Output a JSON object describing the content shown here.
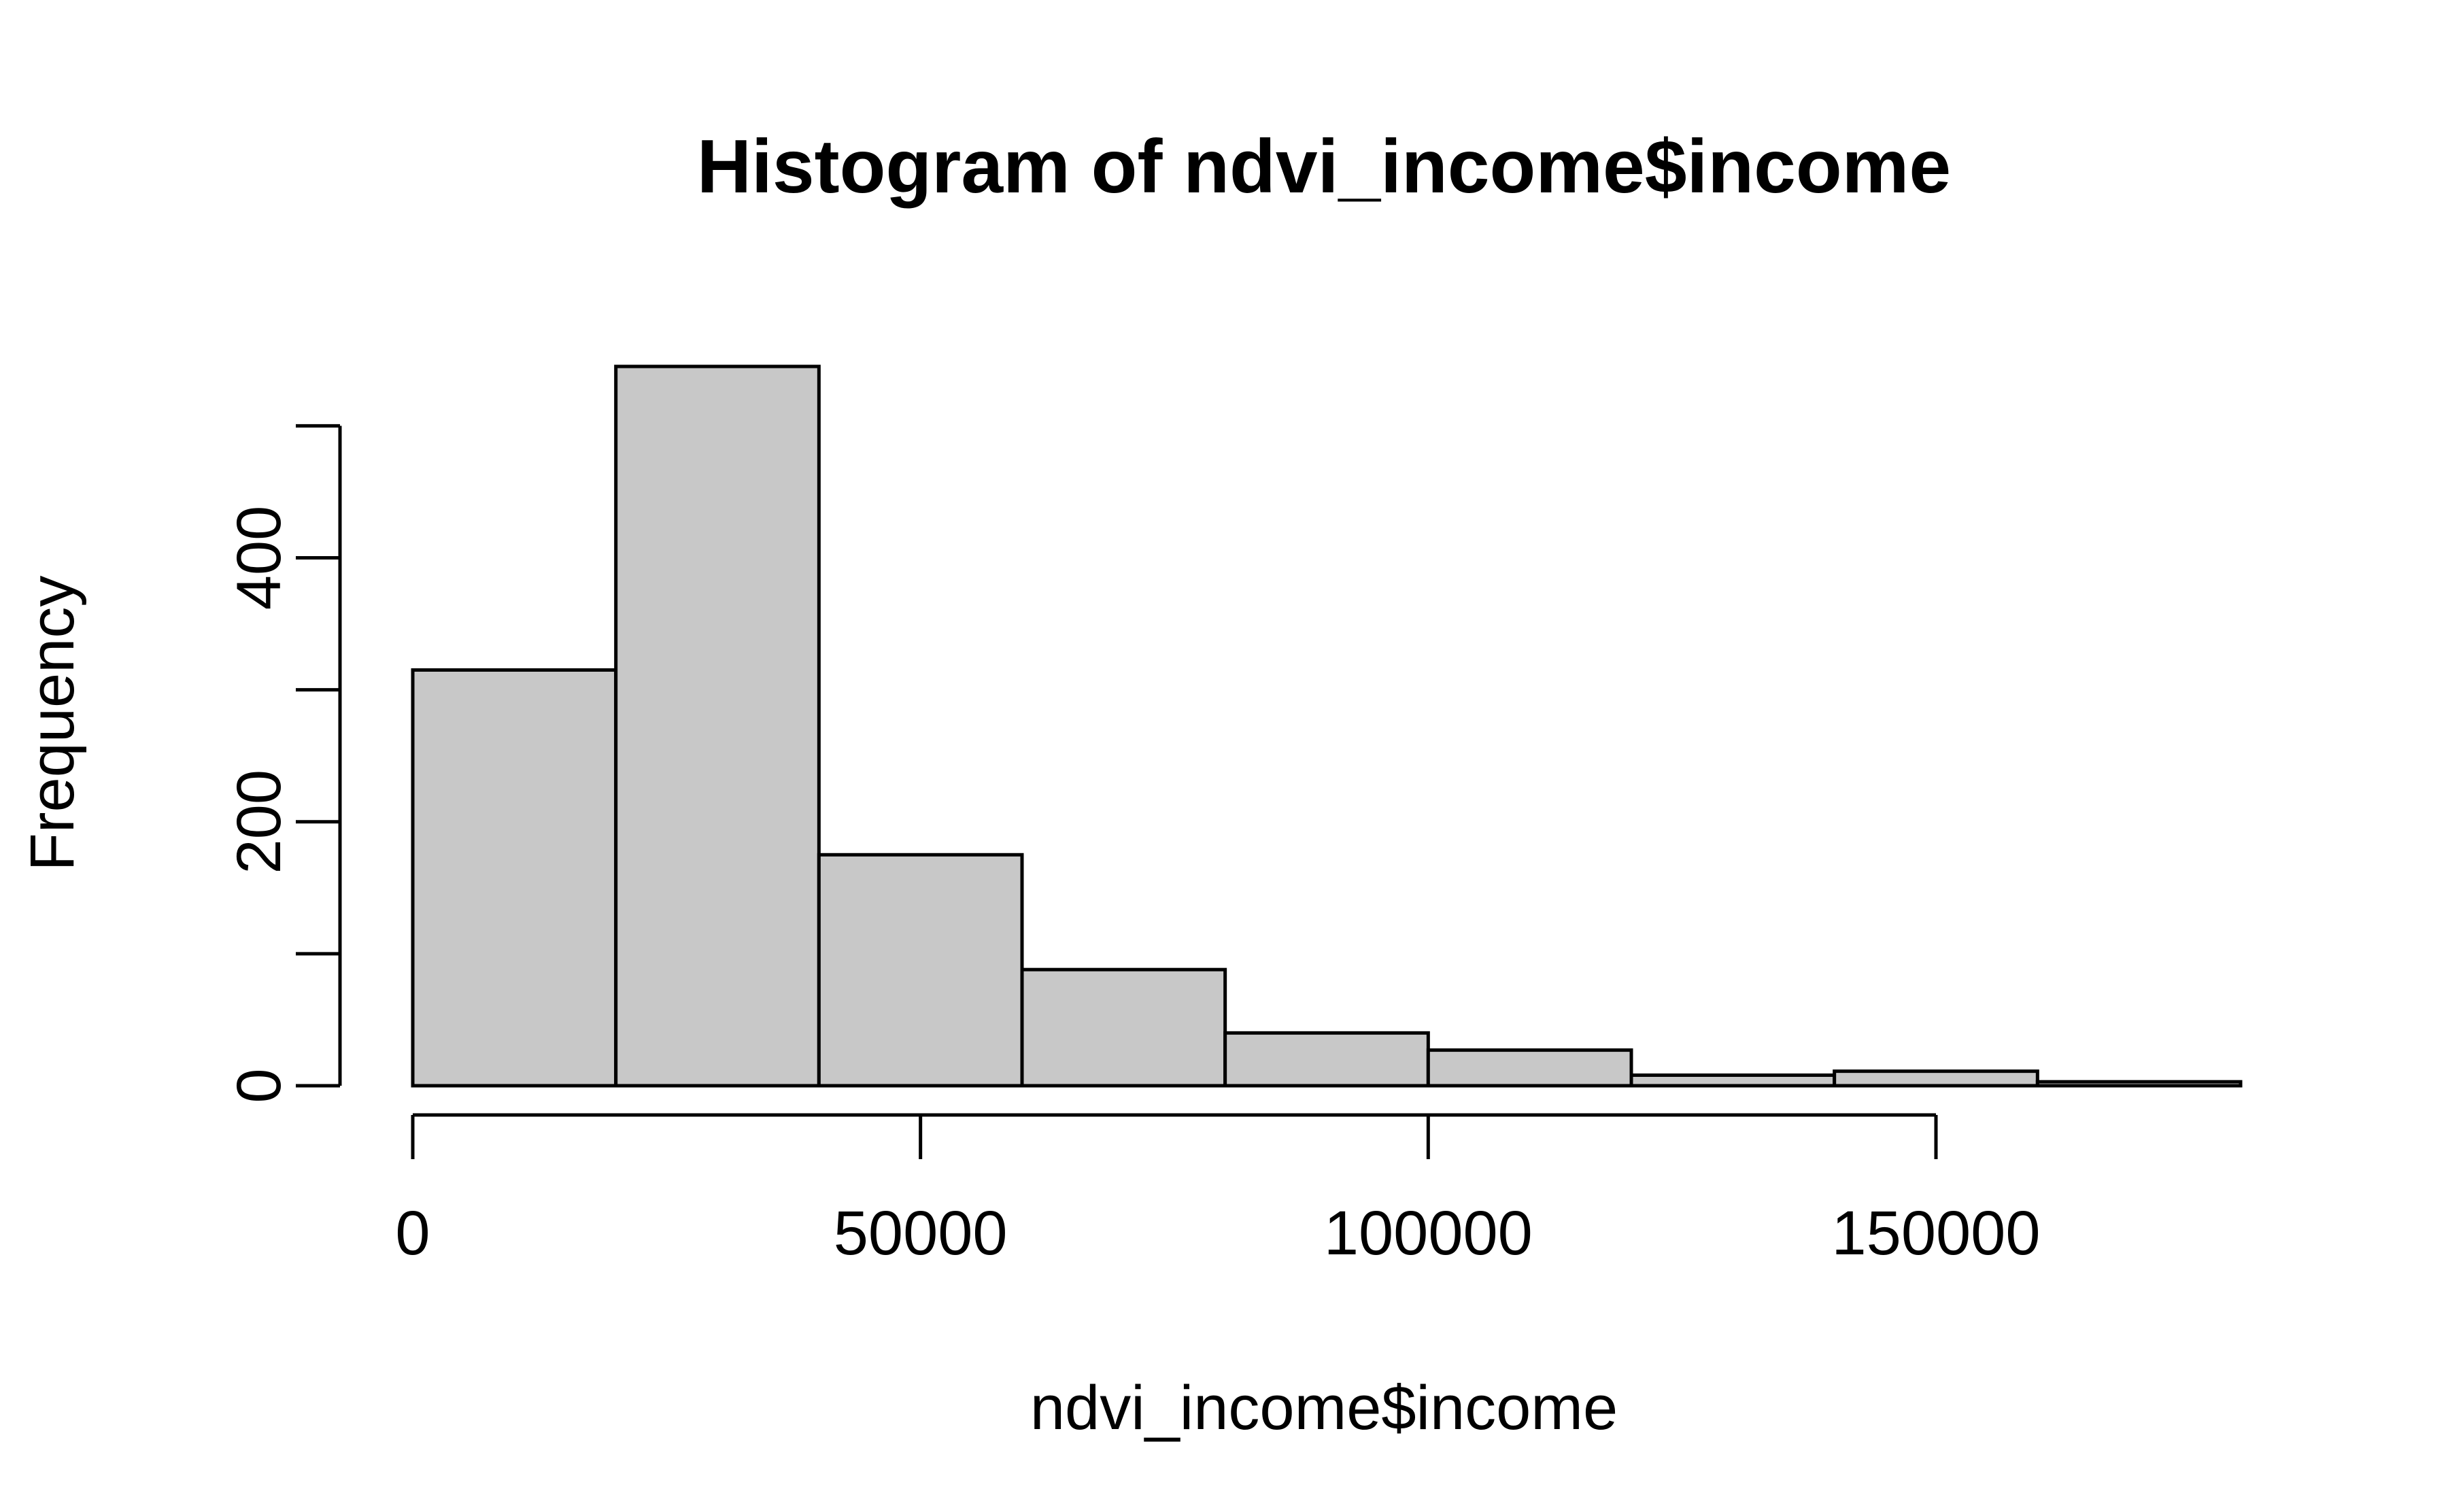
{
  "chart_data": {
    "type": "bar",
    "title": "Histogram of ndvi_income$income",
    "xlabel": "ndvi_income$income",
    "ylabel": "Frequency",
    "bin_edges": [
      0,
      20000,
      40000,
      60000,
      80000,
      100000,
      120000,
      140000,
      160000,
      180000
    ],
    "values": [
      315,
      545,
      175,
      88,
      40,
      27,
      8,
      11,
      3
    ],
    "xlim": [
      0,
      180000
    ],
    "ylim": [
      0,
      545
    ],
    "x_ticks": [
      0,
      50000,
      100000,
      150000
    ],
    "x_tick_labels": [
      "0",
      "50000",
      "100000",
      "150000"
    ],
    "y_ticks": [
      0,
      100,
      200,
      300,
      400,
      500
    ],
    "y_tick_labels": [
      "0",
      "",
      "200",
      "",
      "400",
      ""
    ],
    "bar_color": "#c8c8c8",
    "grid": false,
    "legend": "none"
  }
}
